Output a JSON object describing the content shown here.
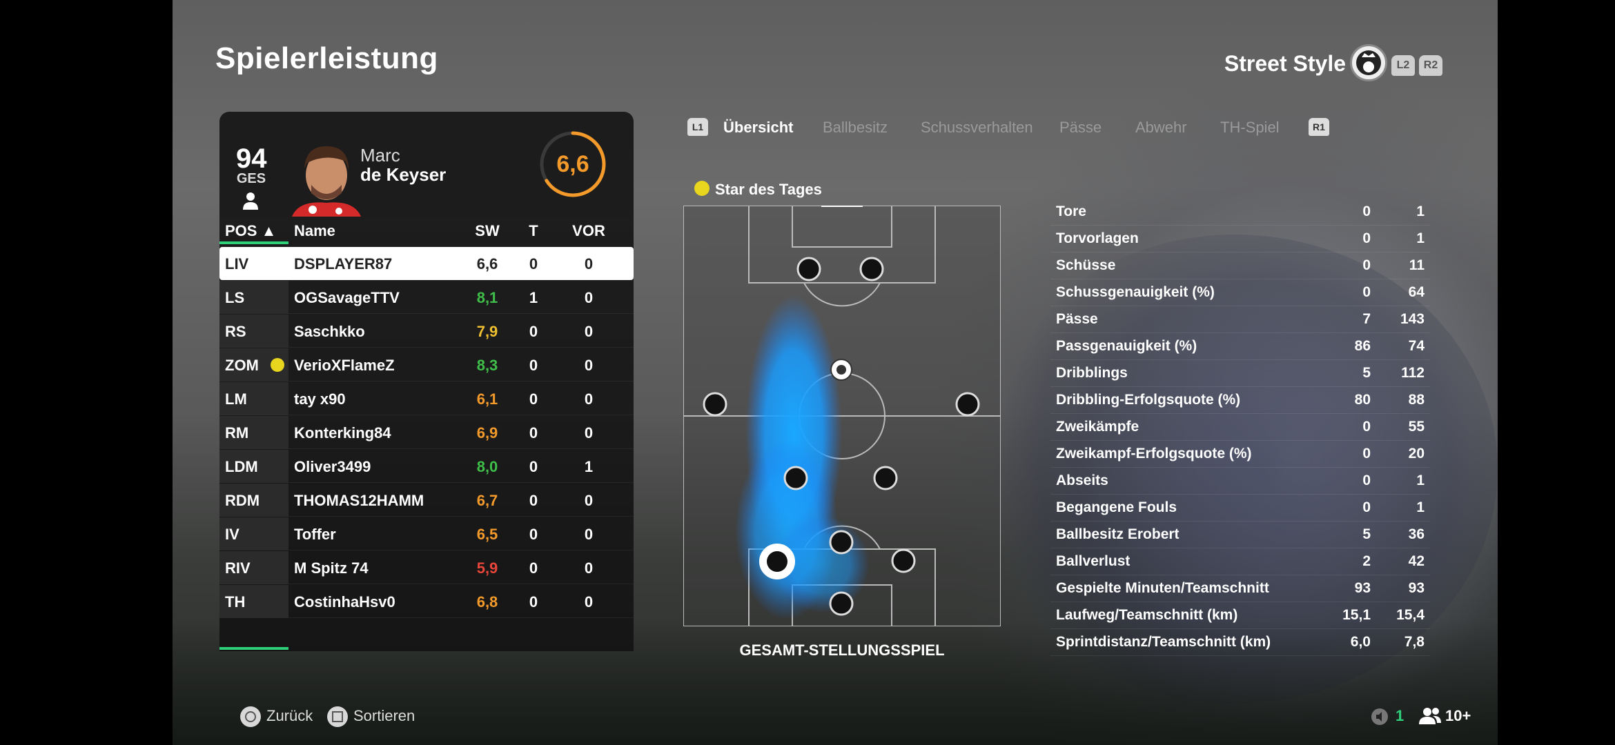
{
  "header": {
    "title": "Spielerleistung",
    "mode": "Street Style",
    "l2": "L2",
    "r2": "R2"
  },
  "player": {
    "overall": "94",
    "overall_label": "GES",
    "first_name": "Marc",
    "last_name": "de Keyser",
    "match_rating": "6,6",
    "match_rating_fraction": 0.66,
    "accent": "#f39a2b"
  },
  "table": {
    "headers": {
      "pos": "POS ▲",
      "name": "Name",
      "sw": "SW",
      "t": "T",
      "vor": "VOR"
    },
    "rows": [
      {
        "pos": "LIV",
        "name": "DSPLAYER87",
        "sw": "6,6",
        "t": "0",
        "vor": "0",
        "color": "#222222",
        "selected": true
      },
      {
        "pos": "LS",
        "name": "OGSavageTTV",
        "sw": "8,1",
        "t": "1",
        "vor": "0",
        "color": "#3fbf4a"
      },
      {
        "pos": "RS",
        "name": "Saschkko",
        "sw": "7,9",
        "t": "0",
        "vor": "0",
        "color": "#f0c030"
      },
      {
        "pos": "ZOM",
        "name": "VerioXFlameZ",
        "sw": "8,3",
        "t": "0",
        "vor": "0",
        "color": "#3fbf4a",
        "star": true
      },
      {
        "pos": "LM",
        "name": "tay x90",
        "sw": "6,1",
        "t": "0",
        "vor": "0",
        "color": "#f39a2b"
      },
      {
        "pos": "RM",
        "name": "Konterking84",
        "sw": "6,9",
        "t": "0",
        "vor": "0",
        "color": "#f39a2b"
      },
      {
        "pos": "LDM",
        "name": "Oliver3499",
        "sw": "8,0",
        "t": "0",
        "vor": "1",
        "color": "#3fbf4a"
      },
      {
        "pos": "RDM",
        "name": "THOMAS12HAMM",
        "sw": "6,7",
        "t": "0",
        "vor": "0",
        "color": "#f39a2b"
      },
      {
        "pos": "IV",
        "name": "Toffer",
        "sw": "6,5",
        "t": "0",
        "vor": "0",
        "color": "#f39a2b"
      },
      {
        "pos": "RIV",
        "name": "M Spitz 74",
        "sw": "5,9",
        "t": "0",
        "vor": "0",
        "color": "#e8463a"
      },
      {
        "pos": "TH",
        "name": "CostinhaHsv0",
        "sw": "6,8",
        "t": "0",
        "vor": "0",
        "color": "#f39a2b"
      }
    ]
  },
  "tabs": {
    "l1": "L1",
    "r1": "R1",
    "items": [
      "Übersicht",
      "Ballbesitz",
      "Schussverhalten",
      "Pässe",
      "Abwehr",
      "TH-Spiel"
    ],
    "active": "Übersicht"
  },
  "pitch": {
    "star_label": "Star des Tages",
    "caption": "GESAMT-STELLUNGSSPIEL"
  },
  "stats": [
    {
      "label": "Tore",
      "player": "0",
      "team": "1"
    },
    {
      "label": "Torvorlagen",
      "player": "0",
      "team": "1"
    },
    {
      "label": "Schüsse",
      "player": "0",
      "team": "11"
    },
    {
      "label": "Schussgenauigkeit (%)",
      "player": "0",
      "team": "64"
    },
    {
      "label": "Pässe",
      "player": "7",
      "team": "143"
    },
    {
      "label": "Passgenauigkeit (%)",
      "player": "86",
      "team": "74"
    },
    {
      "label": "Dribblings",
      "player": "5",
      "team": "112"
    },
    {
      "label": "Dribbling-Erfolgsquote (%)",
      "player": "80",
      "team": "88"
    },
    {
      "label": "Zweikämpfe",
      "player": "0",
      "team": "55"
    },
    {
      "label": "Zweikampf-Erfolgsquote (%)",
      "player": "0",
      "team": "20"
    },
    {
      "label": "Abseits",
      "player": "0",
      "team": "1"
    },
    {
      "label": "Begangene Fouls",
      "player": "0",
      "team": "1"
    },
    {
      "label": "Ballbesitz Erobert",
      "player": "5",
      "team": "36"
    },
    {
      "label": "Ballverlust",
      "player": "2",
      "team": "42"
    },
    {
      "label": "Gespielte Minuten/Teamschnitt",
      "player": "93",
      "team": "93"
    },
    {
      "label": "Laufweg/Teamschnitt (km)",
      "player": "15,1",
      "team": "15,4"
    },
    {
      "label": "Sprintdistanz/Teamschnitt (km)",
      "player": "6,0",
      "team": "7,8"
    }
  ],
  "footer": {
    "back": "Zurück",
    "sort": "Sortieren",
    "count": "1",
    "players": "10+"
  }
}
